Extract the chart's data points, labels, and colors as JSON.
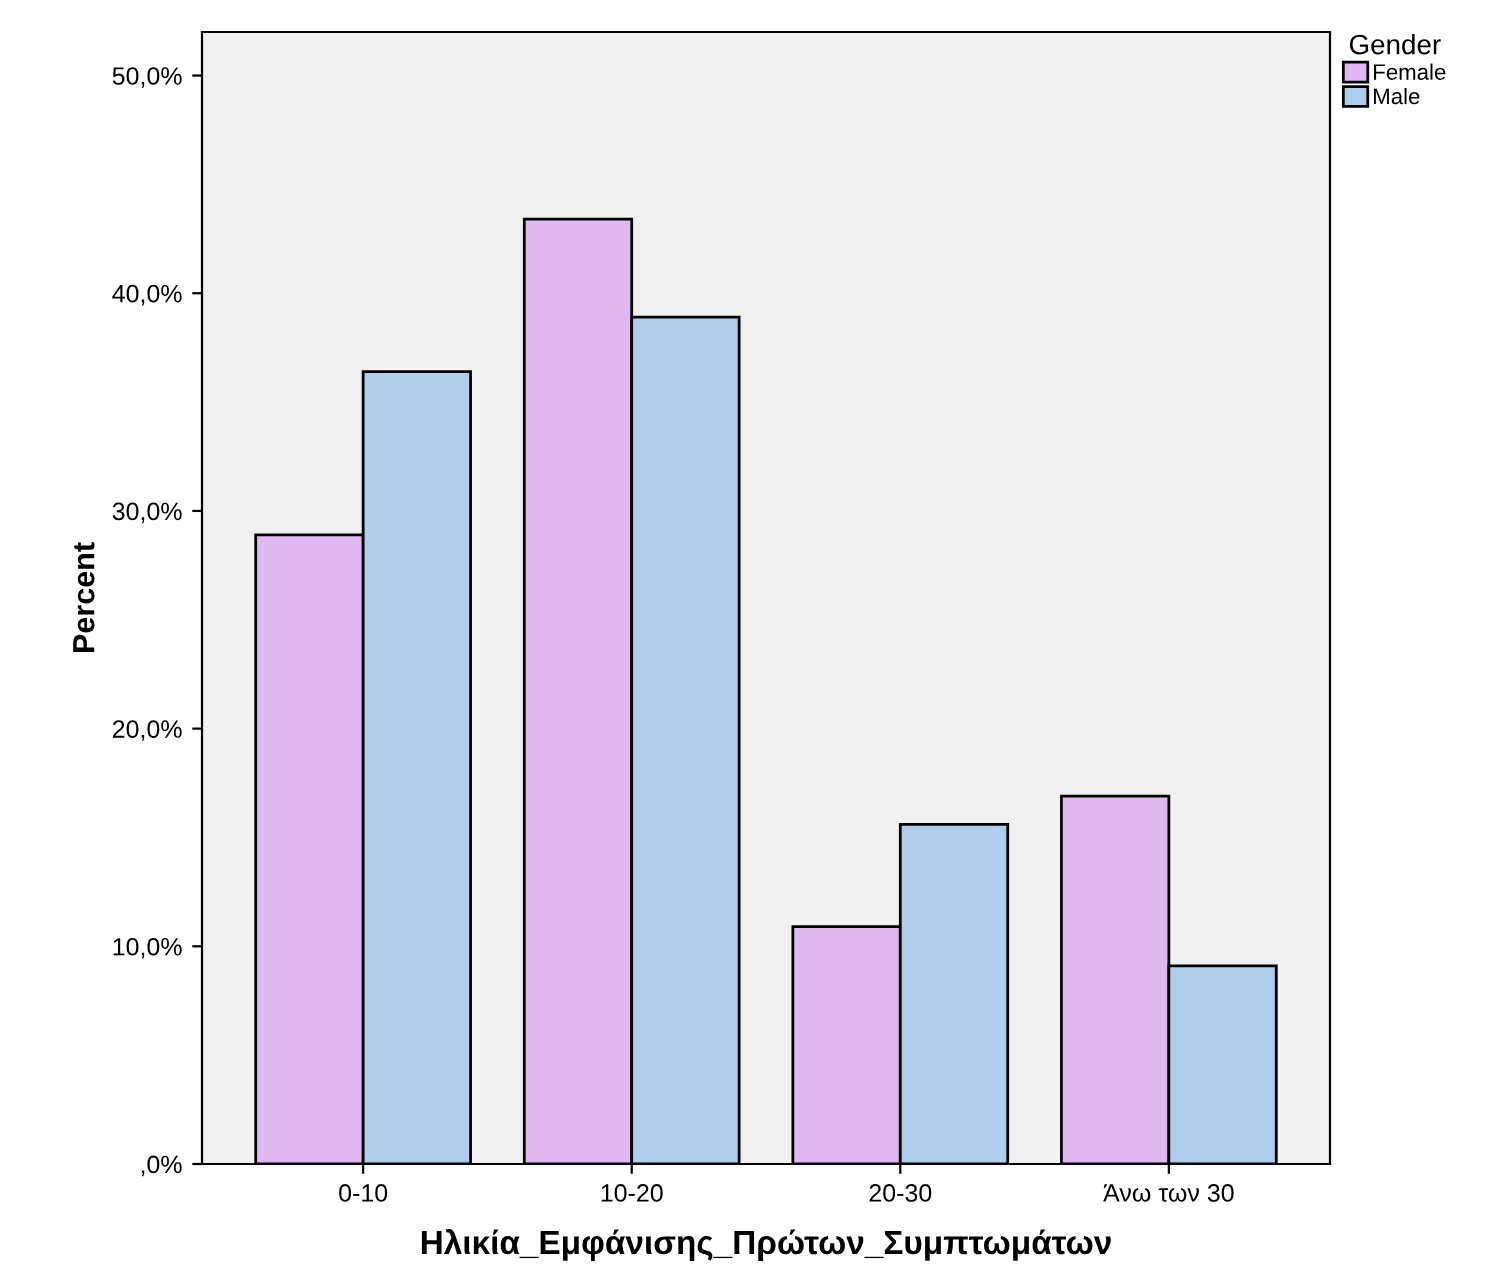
{
  "chart_data": {
    "type": "bar",
    "xlabel": "Ηλικία_Εμφάνισης_Πρώτων_Συμπτωμάτων",
    "ylabel": "Percent",
    "legend_title": "Gender",
    "categories": [
      "0-10",
      "10-20",
      "20-30",
      "Άνω των 30"
    ],
    "series": [
      {
        "name": "Female",
        "color": "#dfb8f1",
        "values": [
          28.9,
          43.4,
          10.9,
          16.9
        ]
      },
      {
        "name": "Male",
        "color": "#aecdeb",
        "values": [
          36.4,
          38.9,
          15.6,
          9.1
        ]
      }
    ],
    "ylim": [
      0,
      52
    ],
    "yticks": [
      {
        "value": 0,
        "label": ",0%"
      },
      {
        "value": 10,
        "label": "10,0%"
      },
      {
        "value": 20,
        "label": "20,0%"
      },
      {
        "value": 30,
        "label": "30,0%"
      },
      {
        "value": 40,
        "label": "40,0%"
      },
      {
        "value": 50,
        "label": "50,0%"
      }
    ],
    "grid": false,
    "legend": "top right"
  }
}
